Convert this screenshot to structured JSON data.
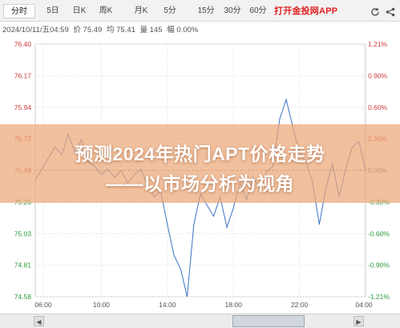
{
  "toolbar": {
    "tabs": [
      "分时",
      "5日",
      "日K",
      "周K",
      "月K",
      "5分",
      "15分",
      "30分",
      "60分"
    ],
    "active_tab": 0,
    "brand_text": "打开金投网APP",
    "icons": [
      "refresh-icon",
      "share-icon"
    ]
  },
  "info": {
    "datetime": "2024/10/11/五04:59",
    "price": "价 75.49",
    "avg": "均 75.41",
    "volume": "量 145",
    "change": "幅 0.00%"
  },
  "banner": {
    "line1": "预测2024年热门APT价格走势",
    "line2": "——以市场分析为视角"
  },
  "chart_data": {
    "type": "line",
    "y_ticks": [
      "76.40",
      "76.17",
      "75.94",
      "75.72",
      "75.49",
      "75.26",
      "75.03",
      "74.81",
      "74.58"
    ],
    "y_min": 74.58,
    "y_max": 76.4,
    "pct_ticks": [
      "1.21%",
      "0.90%",
      "0.60%",
      "0.30%",
      "0.00%",
      "-0.30%",
      "-0.60%",
      "-0.90%",
      "-1.21%"
    ],
    "x_ticks": [
      "06:00",
      "10:00",
      "14:00",
      "18:00",
      "22:00",
      "04:00"
    ],
    "reference_price": 75.49,
    "series": [
      {
        "color": "#3a73c4",
        "x": [
          0,
          2,
          4,
          6,
          8,
          10,
          12,
          14,
          16,
          18,
          20,
          22,
          24,
          26,
          28,
          30,
          32,
          34,
          36,
          38,
          40,
          42,
          44,
          46,
          48,
          50,
          52,
          54,
          56,
          58,
          60,
          62,
          64,
          66,
          68,
          70,
          72,
          74,
          76,
          78,
          80,
          82,
          84,
          86,
          88,
          90,
          92,
          94,
          96,
          98,
          100
        ],
        "y": [
          75.42,
          75.5,
          75.58,
          75.66,
          75.6,
          75.75,
          75.62,
          75.71,
          75.55,
          75.52,
          75.46,
          75.5,
          75.44,
          75.49,
          75.4,
          75.46,
          75.5,
          75.38,
          75.3,
          75.34,
          75.1,
          74.88,
          74.78,
          74.58,
          75.1,
          75.32,
          75.24,
          75.16,
          75.3,
          75.08,
          75.22,
          75.4,
          75.28,
          75.44,
          75.36,
          75.48,
          75.52,
          75.86,
          76.0,
          75.8,
          75.62,
          75.55,
          75.4,
          75.1,
          75.36,
          75.54,
          75.3,
          75.5,
          75.66,
          75.7,
          75.49
        ]
      }
    ]
  }
}
